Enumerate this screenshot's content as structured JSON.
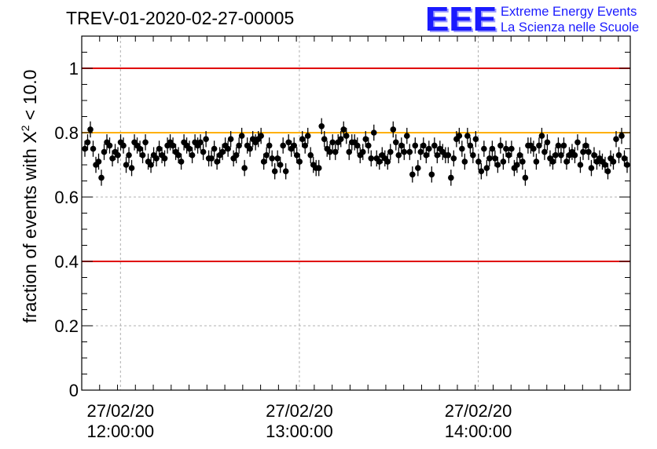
{
  "header": {
    "title": "TREV-01-2020-02-27-00005"
  },
  "logo": {
    "mark": "EEE",
    "line1": "Extreme Energy Events",
    "line2": "La Scienza nelle Scuole"
  },
  "chart_data": {
    "type": "scatter",
    "title": "TREV-01-2020-02-27-00005",
    "ylabel_parts": [
      "fraction of events with X",
      "2",
      " < 10.0"
    ],
    "ylim": [
      0,
      1.1
    ],
    "yticks": [
      0,
      0.2,
      0.4,
      0.6,
      0.8,
      1
    ],
    "ytick_labels": [
      "0",
      "0.2",
      "0.4",
      "0.6",
      "0.8",
      "1"
    ],
    "xlim": [
      "11:47:00",
      "14:51:00"
    ],
    "xticks": [
      {
        "time": "12:00:00",
        "date": "27/02/20"
      },
      {
        "time": "13:00:00",
        "date": "27/02/20"
      },
      {
        "time": "14:00:00",
        "date": "27/02/20"
      }
    ],
    "grid": true,
    "reference_lines": [
      {
        "y": 1.0,
        "color": "#e00000"
      },
      {
        "y": 0.4,
        "color": "#e00000"
      },
      {
        "y": 0.8,
        "color": "#ffb000"
      }
    ],
    "marker_color": "#000000",
    "series": [
      {
        "y": [
          0.75,
          0.77,
          0.81,
          0.75,
          0.7,
          0.71,
          0.66,
          0.74,
          0.77,
          0.76,
          0.72,
          0.74,
          0.73,
          0.77,
          0.76,
          0.7,
          0.73,
          0.69,
          0.77,
          0.76,
          0.75,
          0.73,
          0.77,
          0.71,
          0.7,
          0.73,
          0.72,
          0.75,
          0.73,
          0.72,
          0.76,
          0.77,
          0.76,
          0.74,
          0.73,
          0.71,
          0.77,
          0.76,
          0.75,
          0.73,
          0.77,
          0.76,
          0.77,
          0.74,
          0.78,
          0.72,
          0.72,
          0.75,
          0.71,
          0.73,
          0.74,
          0.76,
          0.75,
          0.78,
          0.72,
          0.73,
          0.76,
          0.79,
          0.69,
          0.76,
          0.75,
          0.78,
          0.77,
          0.78,
          0.79,
          0.71,
          0.73,
          0.76,
          0.72,
          0.68,
          0.72,
          0.7,
          0.76,
          0.68,
          0.77,
          0.75,
          0.76,
          0.73,
          0.71,
          0.78,
          0.76,
          0.79,
          0.73,
          0.7,
          0.69,
          0.69,
          0.82,
          0.78,
          0.75,
          0.74,
          0.77,
          0.74,
          0.77,
          0.78,
          0.81,
          0.79,
          0.74,
          0.77,
          0.77,
          0.76,
          0.73,
          0.74,
          0.78,
          0.76,
          0.72,
          0.8,
          0.72,
          0.71,
          0.73,
          0.72,
          0.71,
          0.74,
          0.81,
          0.77,
          0.73,
          0.76,
          0.74,
          0.79,
          0.74,
          0.67,
          0.76,
          0.69,
          0.74,
          0.76,
          0.73,
          0.75,
          0.67,
          0.76,
          0.73,
          0.75,
          0.74,
          0.73,
          0.73,
          0.66,
          0.72,
          0.78,
          0.79,
          0.75,
          0.71,
          0.79,
          0.76,
          0.73,
          0.78,
          0.71,
          0.68,
          0.75,
          0.69,
          0.72,
          0.75,
          0.72,
          0.7,
          0.76,
          0.71,
          0.75,
          0.73,
          0.75,
          0.69,
          0.7,
          0.73,
          0.71,
          0.66,
          0.76,
          0.76,
          0.75,
          0.71,
          0.76,
          0.79,
          0.74,
          0.77,
          0.72,
          0.71,
          0.73,
          0.76,
          0.73,
          0.76,
          0.71,
          0.73,
          0.74,
          0.73,
          0.77,
          0.7,
          0.74,
          0.76,
          0.74,
          0.69,
          0.73,
          0.71,
          0.72,
          0.71,
          0.7,
          0.68,
          0.72,
          0.71,
          0.78,
          0.73,
          0.79,
          0.72,
          0.7
        ],
        "error": 0.025
      }
    ]
  }
}
